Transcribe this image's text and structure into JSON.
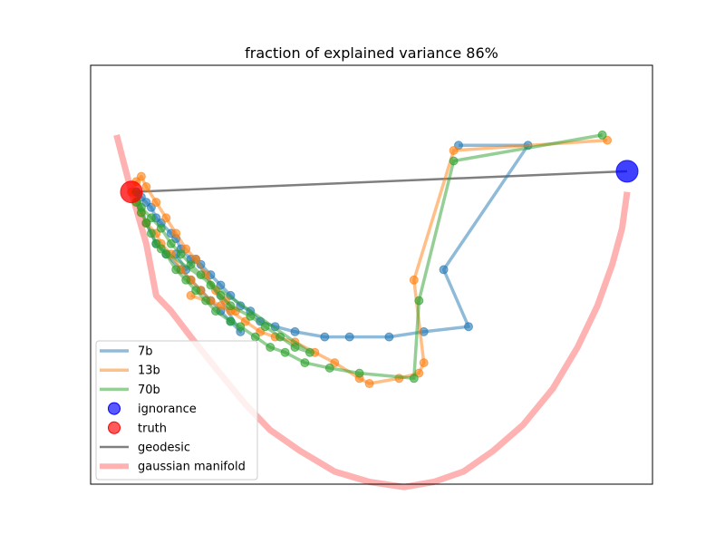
{
  "chart_data": {
    "type": "line",
    "title": "fraction of explained variance 86%",
    "axes_ticks_visible": false,
    "legend_position": "lower-left",
    "series": [
      {
        "name": "7b",
        "kind": "line+markers",
        "color": "#1f77b4",
        "points": [
          [
            0.66,
            0.77
          ],
          [
            0.8,
            0.77
          ],
          [
            0.63,
            0.53
          ],
          [
            0.68,
            0.42
          ],
          [
            0.59,
            0.41
          ],
          [
            0.52,
            0.4
          ],
          [
            0.44,
            0.4
          ],
          [
            0.39,
            0.4
          ],
          [
            0.33,
            0.41
          ],
          [
            0.29,
            0.42
          ],
          [
            0.26,
            0.43
          ],
          [
            0.24,
            0.45
          ],
          [
            0.22,
            0.46
          ],
          [
            0.2,
            0.48
          ],
          [
            0.18,
            0.5
          ],
          [
            0.16,
            0.52
          ],
          [
            0.14,
            0.54
          ],
          [
            0.12,
            0.55
          ],
          [
            0.1,
            0.57
          ],
          [
            0.09,
            0.59
          ],
          [
            0.08,
            0.6
          ],
          [
            0.06,
            0.62
          ],
          [
            0.05,
            0.63
          ],
          [
            0.04,
            0.65
          ],
          [
            0.03,
            0.66
          ],
          [
            0.02,
            0.67
          ],
          [
            0.01,
            0.68
          ],
          [
            0.03,
            0.62
          ],
          [
            0.05,
            0.58
          ],
          [
            0.07,
            0.56
          ],
          [
            0.1,
            0.53
          ],
          [
            0.12,
            0.51
          ],
          [
            0.14,
            0.49
          ],
          [
            0.16,
            0.47
          ],
          [
            0.18,
            0.45
          ],
          [
            0.2,
            0.43
          ],
          [
            0.22,
            0.41
          ],
          [
            0.13,
            0.55
          ],
          [
            0.11,
            0.53
          ],
          [
            0.09,
            0.56
          ]
        ]
      },
      {
        "name": "13b",
        "kind": "line+markers",
        "color": "#ff7f0e",
        "points": [
          [
            0.96,
            0.78
          ],
          [
            0.65,
            0.76
          ],
          [
            0.57,
            0.51
          ],
          [
            0.59,
            0.35
          ],
          [
            0.58,
            0.33
          ],
          [
            0.54,
            0.32
          ],
          [
            0.48,
            0.31
          ],
          [
            0.46,
            0.32
          ],
          [
            0.41,
            0.35
          ],
          [
            0.37,
            0.37
          ],
          [
            0.33,
            0.39
          ],
          [
            0.29,
            0.4
          ],
          [
            0.26,
            0.41
          ],
          [
            0.23,
            0.43
          ],
          [
            0.2,
            0.45
          ],
          [
            0.18,
            0.46
          ],
          [
            0.16,
            0.47
          ],
          [
            0.14,
            0.49
          ],
          [
            0.12,
            0.51
          ],
          [
            0.1,
            0.53
          ],
          [
            0.08,
            0.56
          ],
          [
            0.06,
            0.58
          ],
          [
            0.05,
            0.6
          ],
          [
            0.03,
            0.62
          ],
          [
            0.02,
            0.64
          ],
          [
            0.01,
            0.66
          ],
          [
            0.0,
            0.68
          ],
          [
            0.01,
            0.7
          ],
          [
            0.02,
            0.71
          ],
          [
            0.03,
            0.69
          ],
          [
            0.05,
            0.66
          ],
          [
            0.07,
            0.63
          ],
          [
            0.09,
            0.6
          ],
          [
            0.11,
            0.57
          ],
          [
            0.13,
            0.55
          ],
          [
            0.15,
            0.52
          ],
          [
            0.17,
            0.49
          ],
          [
            0.19,
            0.47
          ],
          [
            0.21,
            0.45
          ],
          [
            0.12,
            0.48
          ]
        ]
      },
      {
        "name": "70b",
        "kind": "line+markers",
        "color": "#2ca02c",
        "points": [
          [
            0.95,
            0.79
          ],
          [
            0.65,
            0.74
          ],
          [
            0.58,
            0.47
          ],
          [
            0.57,
            0.32
          ],
          [
            0.46,
            0.33
          ],
          [
            0.4,
            0.34
          ],
          [
            0.35,
            0.35
          ],
          [
            0.31,
            0.37
          ],
          [
            0.28,
            0.38
          ],
          [
            0.25,
            0.4
          ],
          [
            0.22,
            0.42
          ],
          [
            0.2,
            0.43
          ],
          [
            0.17,
            0.45
          ],
          [
            0.15,
            0.47
          ],
          [
            0.13,
            0.49
          ],
          [
            0.11,
            0.51
          ],
          [
            0.09,
            0.53
          ],
          [
            0.07,
            0.56
          ],
          [
            0.05,
            0.58
          ],
          [
            0.04,
            0.6
          ],
          [
            0.03,
            0.62
          ],
          [
            0.02,
            0.64
          ],
          [
            0.01,
            0.66
          ],
          [
            0.01,
            0.68
          ],
          [
            0.02,
            0.65
          ],
          [
            0.04,
            0.63
          ],
          [
            0.06,
            0.61
          ],
          [
            0.08,
            0.58
          ],
          [
            0.1,
            0.56
          ],
          [
            0.12,
            0.54
          ],
          [
            0.14,
            0.52
          ],
          [
            0.16,
            0.5
          ],
          [
            0.18,
            0.48
          ],
          [
            0.2,
            0.46
          ],
          [
            0.24,
            0.44
          ],
          [
            0.27,
            0.42
          ],
          [
            0.3,
            0.4
          ],
          [
            0.33,
            0.38
          ],
          [
            0.36,
            0.37
          ],
          [
            0.06,
            0.57
          ]
        ]
      },
      {
        "name": "ignorance",
        "kind": "scatter",
        "color": "#0000ff",
        "points": [
          [
            1.0,
            0.72
          ]
        ]
      },
      {
        "name": "truth",
        "kind": "scatter",
        "color": "#ff0000",
        "points": [
          [
            0.0,
            0.68
          ]
        ]
      },
      {
        "name": "geodesic",
        "kind": "line",
        "color": "#000000",
        "points": [
          [
            0.0,
            0.68
          ],
          [
            1.0,
            0.72
          ]
        ]
      },
      {
        "name": "gaussian manifold",
        "kind": "line",
        "color": "#ff0000",
        "points": [
          [
            -0.03,
            0.79
          ],
          [
            0.0,
            0.68
          ],
          [
            0.03,
            0.58
          ],
          [
            0.05,
            0.48
          ],
          [
            0.08,
            0.45
          ],
          [
            0.12,
            0.4
          ],
          [
            0.17,
            0.34
          ],
          [
            0.23,
            0.27
          ],
          [
            0.28,
            0.22
          ],
          [
            0.34,
            0.18
          ],
          [
            0.41,
            0.14
          ],
          [
            0.48,
            0.12
          ],
          [
            0.55,
            0.11
          ],
          [
            0.61,
            0.12
          ],
          [
            0.67,
            0.14
          ],
          [
            0.73,
            0.18
          ],
          [
            0.79,
            0.23
          ],
          [
            0.85,
            0.3
          ],
          [
            0.9,
            0.38
          ],
          [
            0.94,
            0.46
          ],
          [
            0.97,
            0.54
          ],
          [
            0.99,
            0.61
          ],
          [
            1.0,
            0.68
          ]
        ]
      }
    ]
  }
}
